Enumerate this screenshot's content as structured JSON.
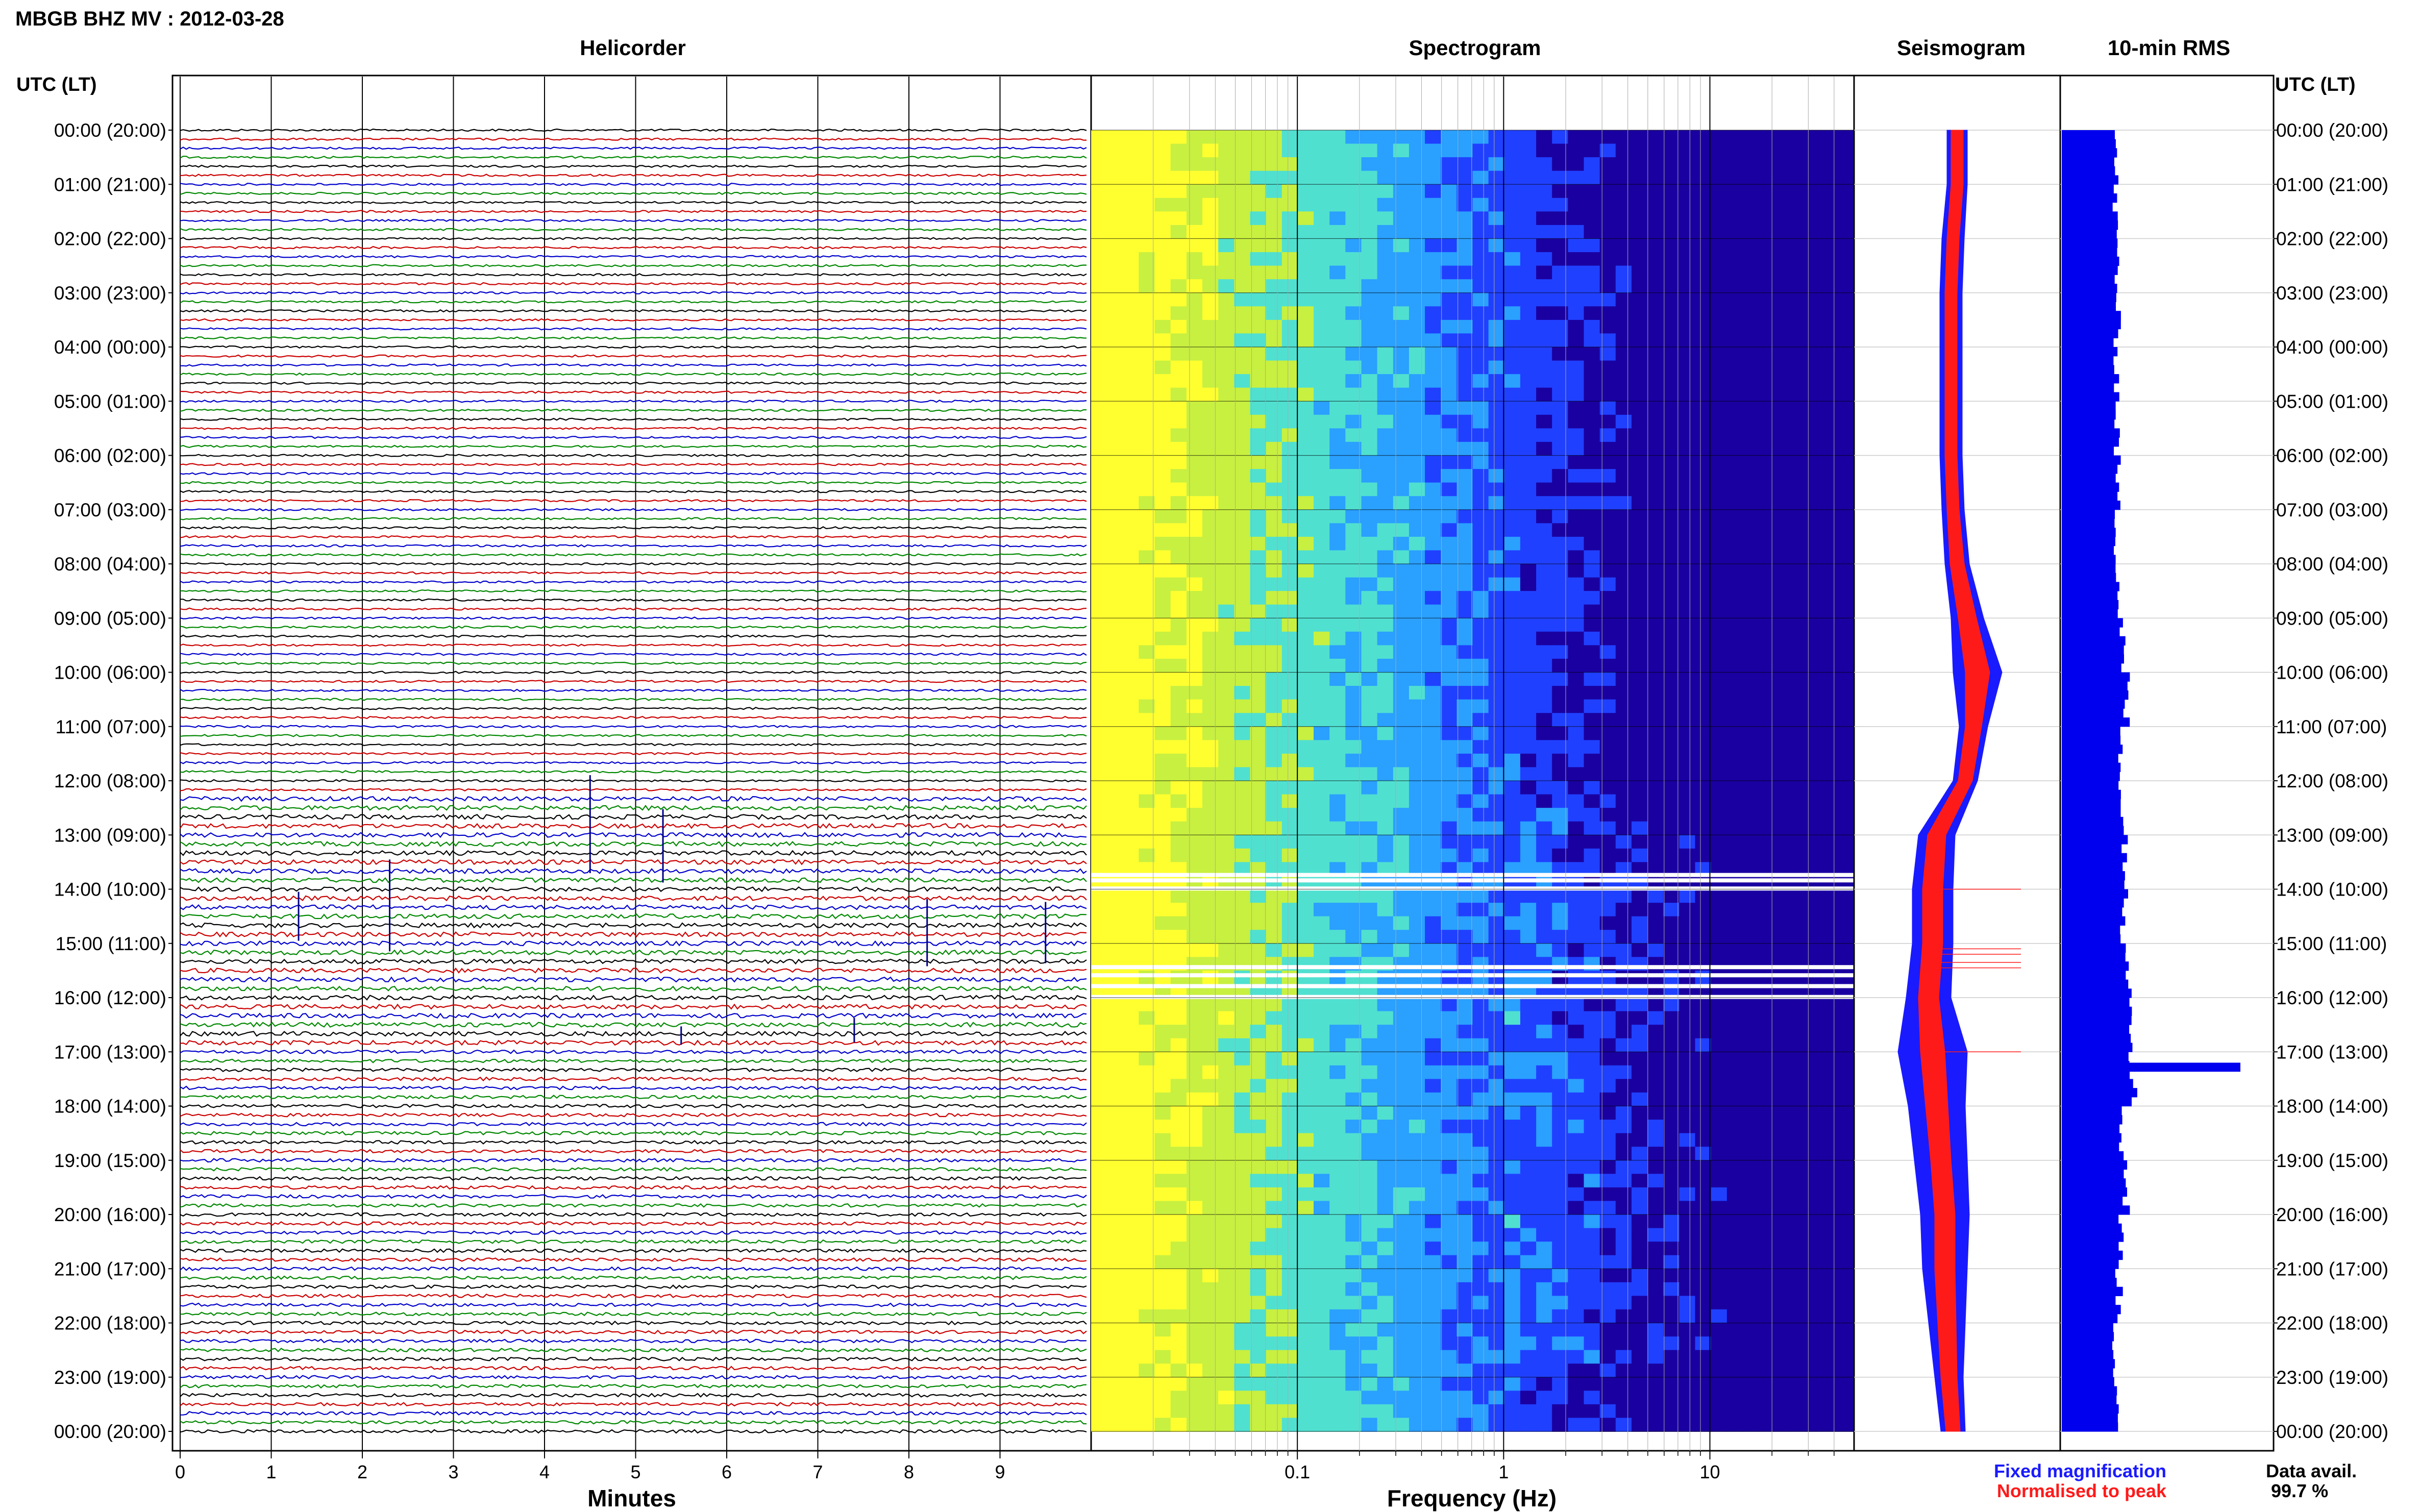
{
  "header": {
    "title": "MBGB BHZ MV : 2012-03-28"
  },
  "time_axis": {
    "label": "UTC (LT)",
    "ticks": [
      "00:00 (20:00)",
      "01:00 (21:00)",
      "02:00 (22:00)",
      "03:00 (23:00)",
      "04:00 (00:00)",
      "05:00 (01:00)",
      "06:00 (02:00)",
      "07:00 (03:00)",
      "08:00 (04:00)",
      "09:00 (05:00)",
      "10:00 (06:00)",
      "11:00 (07:00)",
      "12:00 (08:00)",
      "13:00 (09:00)",
      "14:00 (10:00)",
      "15:00 (11:00)",
      "16:00 (12:00)",
      "17:00 (13:00)",
      "18:00 (14:00)",
      "19:00 (15:00)",
      "20:00 (16:00)",
      "21:00 (17:00)",
      "22:00 (18:00)",
      "23:00 (19:00)",
      "00:00 (20:00)"
    ]
  },
  "panels": {
    "helicorder": {
      "title": "Helicorder",
      "xlabel": "Minutes",
      "xticks": [
        "0",
        "1",
        "2",
        "3",
        "4",
        "5",
        "6",
        "7",
        "8",
        "9"
      ]
    },
    "spectrogram": {
      "title": "Spectrogram",
      "xlabel": "Frequency (Hz)",
      "xticks": [
        "0.1",
        "1",
        "10"
      ]
    },
    "seismogram": {
      "title": "Seismogram"
    },
    "rms": {
      "title": "10-min RMS"
    }
  },
  "legend": {
    "fixed": "Fixed magnification",
    "normalised": "Normalised to peak"
  },
  "availability": {
    "label": "Data avail.",
    "value": "99.7 %"
  },
  "colors": {
    "trace_cycle": [
      "#000000",
      "#cc0000",
      "#0000cc",
      "#008800"
    ],
    "fixed": "#1a1aff",
    "normalised": "#ff1a1a"
  },
  "chart_data": [
    {
      "type": "line",
      "title": "Helicorder",
      "xlabel": "Minutes",
      "xlim": [
        0,
        10
      ],
      "ylabel": "UTC (LT)",
      "rows_per_hour": 6,
      "hours": 24,
      "events": [
        {
          "hour": 12.8,
          "minute": 4.5,
          "amp": 3.2
        },
        {
          "hour": 13.2,
          "minute": 5.3,
          "amp": 2.4
        },
        {
          "hour": 14.3,
          "minute": 2.3,
          "amp": 3.0
        },
        {
          "hour": 14.5,
          "minute": 1.3,
          "amp": 1.6
        },
        {
          "hour": 14.8,
          "minute": 8.2,
          "amp": 2.2
        },
        {
          "hour": 14.8,
          "minute": 9.5,
          "amp": 2.0
        },
        {
          "hour": 16.6,
          "minute": 7.4,
          "amp": 0.8
        },
        {
          "hour": 16.7,
          "minute": 5.5,
          "amp": 0.6
        }
      ]
    },
    {
      "type": "heatmap",
      "title": "Spectrogram",
      "xlabel": "Frequency (Hz)",
      "xscale": "log",
      "xlim": [
        0.01,
        50
      ],
      "colormap": [
        "#1a00a0",
        "#2040ff",
        "#2aa0ff",
        "#50e0d0",
        "#c8f040",
        "#ffff30"
      ],
      "gaps_hours": [
        13.7,
        13.8,
        13.95,
        15.4,
        15.55,
        15.75,
        15.95
      ]
    },
    {
      "type": "line",
      "title": "Seismogram",
      "series": [
        {
          "name": "Fixed magnification",
          "hours": [
            0,
            1,
            2,
            3,
            4,
            5,
            6,
            7,
            8,
            9,
            10,
            11,
            12,
            13,
            14,
            15,
            16,
            17,
            18,
            19,
            20,
            21,
            22,
            23,
            24
          ],
          "width": [
            0.1,
            0.1,
            0.11,
            0.11,
            0.11,
            0.11,
            0.11,
            0.11,
            0.12,
            0.16,
            0.24,
            0.14,
            0.12,
            0.18,
            0.2,
            0.2,
            0.22,
            0.34,
            0.28,
            0.26,
            0.24,
            0.22,
            0.18,
            0.14,
            0.12
          ],
          "center": [
            0.0,
            0.0,
            -0.02,
            -0.03,
            -0.03,
            -0.03,
            -0.03,
            -0.02,
            0.0,
            0.05,
            0.1,
            0.08,
            0.04,
            -0.1,
            -0.12,
            -0.12,
            -0.14,
            -0.12,
            -0.1,
            -0.08,
            -0.06,
            -0.06,
            -0.05,
            -0.04,
            -0.02
          ]
        },
        {
          "name": "Normalised to peak",
          "hours": [
            0,
            1,
            2,
            3,
            4,
            5,
            6,
            7,
            8,
            9,
            10,
            11,
            12,
            13,
            14,
            15,
            16,
            17,
            18,
            19,
            20,
            21,
            22,
            23,
            24
          ],
          "width": [
            0.06,
            0.06,
            0.06,
            0.06,
            0.06,
            0.06,
            0.06,
            0.06,
            0.07,
            0.09,
            0.12,
            0.08,
            0.07,
            0.09,
            0.1,
            0.1,
            0.1,
            0.12,
            0.11,
            0.1,
            0.1,
            0.1,
            0.09,
            0.08,
            0.07
          ],
          "center": [
            0.0,
            0.0,
            -0.02,
            -0.03,
            -0.03,
            -0.03,
            -0.03,
            -0.02,
            0.0,
            0.05,
            0.1,
            0.08,
            0.04,
            -0.1,
            -0.12,
            -0.12,
            -0.14,
            -0.12,
            -0.1,
            -0.08,
            -0.06,
            -0.06,
            -0.05,
            -0.04,
            -0.02
          ]
        }
      ]
    },
    {
      "type": "bar",
      "title": "10-min RMS",
      "hours": [
        0,
        1,
        2,
        3,
        4,
        5,
        6,
        7,
        8,
        9,
        10,
        11,
        12,
        13,
        14,
        15,
        16,
        17,
        18,
        19,
        20,
        21,
        22,
        23
      ],
      "values": [
        0.3,
        0.3,
        0.31,
        0.31,
        0.31,
        0.31,
        0.31,
        0.31,
        0.32,
        0.34,
        0.36,
        0.33,
        0.34,
        0.36,
        0.35,
        0.38,
        0.4,
        0.4,
        0.34,
        0.36,
        0.33,
        0.32,
        0.3,
        0.3
      ],
      "spike": {
        "hour": 17.2,
        "value": 1.0
      }
    }
  ]
}
